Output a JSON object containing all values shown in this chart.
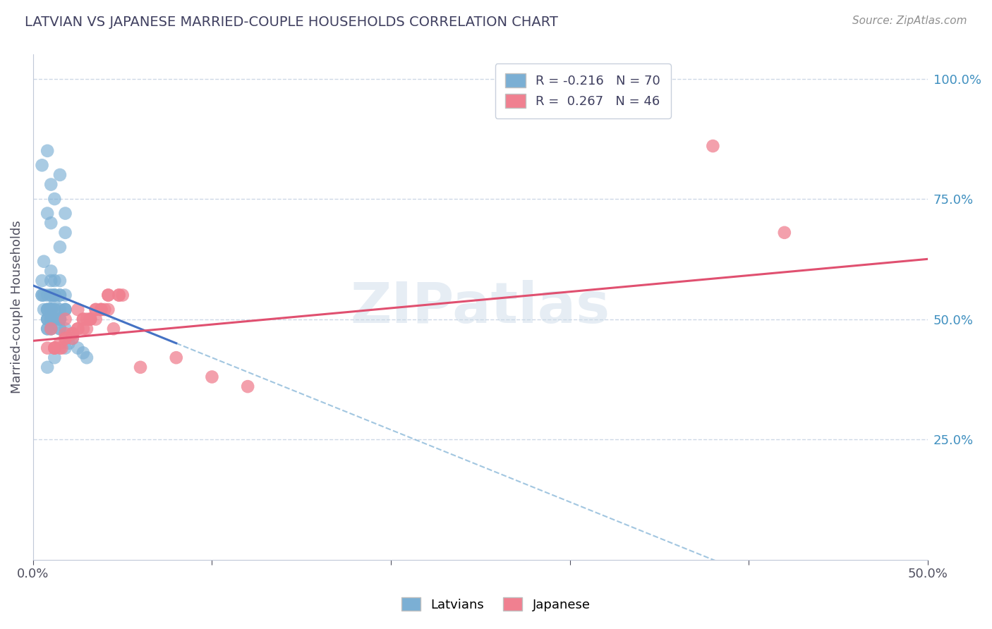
{
  "title": "LATVIAN VS JAPANESE MARRIED-COUPLE HOUSEHOLDS CORRELATION CHART",
  "source_text": "Source: ZipAtlas.com",
  "ylabel": "Married-couple Households",
  "xlim": [
    0.0,
    0.5
  ],
  "ylim": [
    0.0,
    1.05
  ],
  "ytick_vals_right": [
    0.25,
    0.5,
    0.75,
    1.0
  ],
  "ytick_labels_right": [
    "25.0%",
    "50.0%",
    "75.0%",
    "100.0%"
  ],
  "latvian_R": -0.216,
  "latvian_N": 70,
  "japanese_R": 0.267,
  "japanese_N": 46,
  "latvian_color": "#7bafd4",
  "japanese_color": "#f08090",
  "latvian_line_color": "#4472c4",
  "japanese_line_color": "#e05070",
  "dashed_line_color": "#7bafd4",
  "background_color": "#ffffff",
  "grid_color": "#c8d4e4",
  "title_color": "#404060",
  "source_color": "#909090",
  "watermark": "ZIPatlas",
  "watermark_color": "#c8d8e8",
  "lv_x": [
    0.005,
    0.01,
    0.012,
    0.008,
    0.015,
    0.018,
    0.006,
    0.01,
    0.008,
    0.015,
    0.012,
    0.01,
    0.018,
    0.005,
    0.008,
    0.01,
    0.015,
    0.012,
    0.006,
    0.01,
    0.018,
    0.008,
    0.01,
    0.015,
    0.012,
    0.01,
    0.005,
    0.008,
    0.01,
    0.015,
    0.012,
    0.018,
    0.015,
    0.01,
    0.008,
    0.01,
    0.012,
    0.015,
    0.018,
    0.008,
    0.01,
    0.006,
    0.012,
    0.015,
    0.01,
    0.008,
    0.01,
    0.018,
    0.008,
    0.015,
    0.012,
    0.01,
    0.005,
    0.01,
    0.015,
    0.018,
    0.008,
    0.012,
    0.01,
    0.008,
    0.015,
    0.01,
    0.02,
    0.03,
    0.025,
    0.028,
    0.022,
    0.018,
    0.008,
    0.012
  ],
  "lv_y": [
    0.82,
    0.78,
    0.75,
    0.72,
    0.8,
    0.68,
    0.62,
    0.7,
    0.85,
    0.65,
    0.58,
    0.6,
    0.72,
    0.55,
    0.5,
    0.58,
    0.58,
    0.55,
    0.52,
    0.5,
    0.55,
    0.48,
    0.52,
    0.55,
    0.55,
    0.52,
    0.58,
    0.55,
    0.52,
    0.55,
    0.53,
    0.52,
    0.5,
    0.48,
    0.52,
    0.55,
    0.5,
    0.52,
    0.48,
    0.52,
    0.5,
    0.55,
    0.52,
    0.5,
    0.48,
    0.52,
    0.55,
    0.52,
    0.5,
    0.48,
    0.52,
    0.5,
    0.55,
    0.52,
    0.48,
    0.52,
    0.5,
    0.55,
    0.52,
    0.48,
    0.5,
    0.52,
    0.45,
    0.42,
    0.44,
    0.43,
    0.46,
    0.44,
    0.4,
    0.42
  ],
  "jp_x": [
    0.01,
    0.018,
    0.025,
    0.035,
    0.045,
    0.015,
    0.03,
    0.04,
    0.022,
    0.032,
    0.008,
    0.018,
    0.028,
    0.038,
    0.012,
    0.025,
    0.035,
    0.048,
    0.012,
    0.022,
    0.03,
    0.042,
    0.016,
    0.028,
    0.038,
    0.05,
    0.018,
    0.032,
    0.042,
    0.012,
    0.022,
    0.032,
    0.042,
    0.015,
    0.025,
    0.035,
    0.048,
    0.018,
    0.028,
    0.038,
    0.38,
    0.42,
    0.06,
    0.08,
    0.1,
    0.12
  ],
  "jp_y": [
    0.48,
    0.5,
    0.52,
    0.5,
    0.48,
    0.45,
    0.48,
    0.52,
    0.46,
    0.5,
    0.44,
    0.47,
    0.5,
    0.52,
    0.44,
    0.48,
    0.52,
    0.55,
    0.44,
    0.47,
    0.5,
    0.55,
    0.44,
    0.48,
    0.52,
    0.55,
    0.46,
    0.5,
    0.52,
    0.44,
    0.47,
    0.5,
    0.55,
    0.44,
    0.48,
    0.52,
    0.55,
    0.46,
    0.5,
    0.52,
    0.86,
    0.68,
    0.4,
    0.42,
    0.38,
    0.36
  ]
}
